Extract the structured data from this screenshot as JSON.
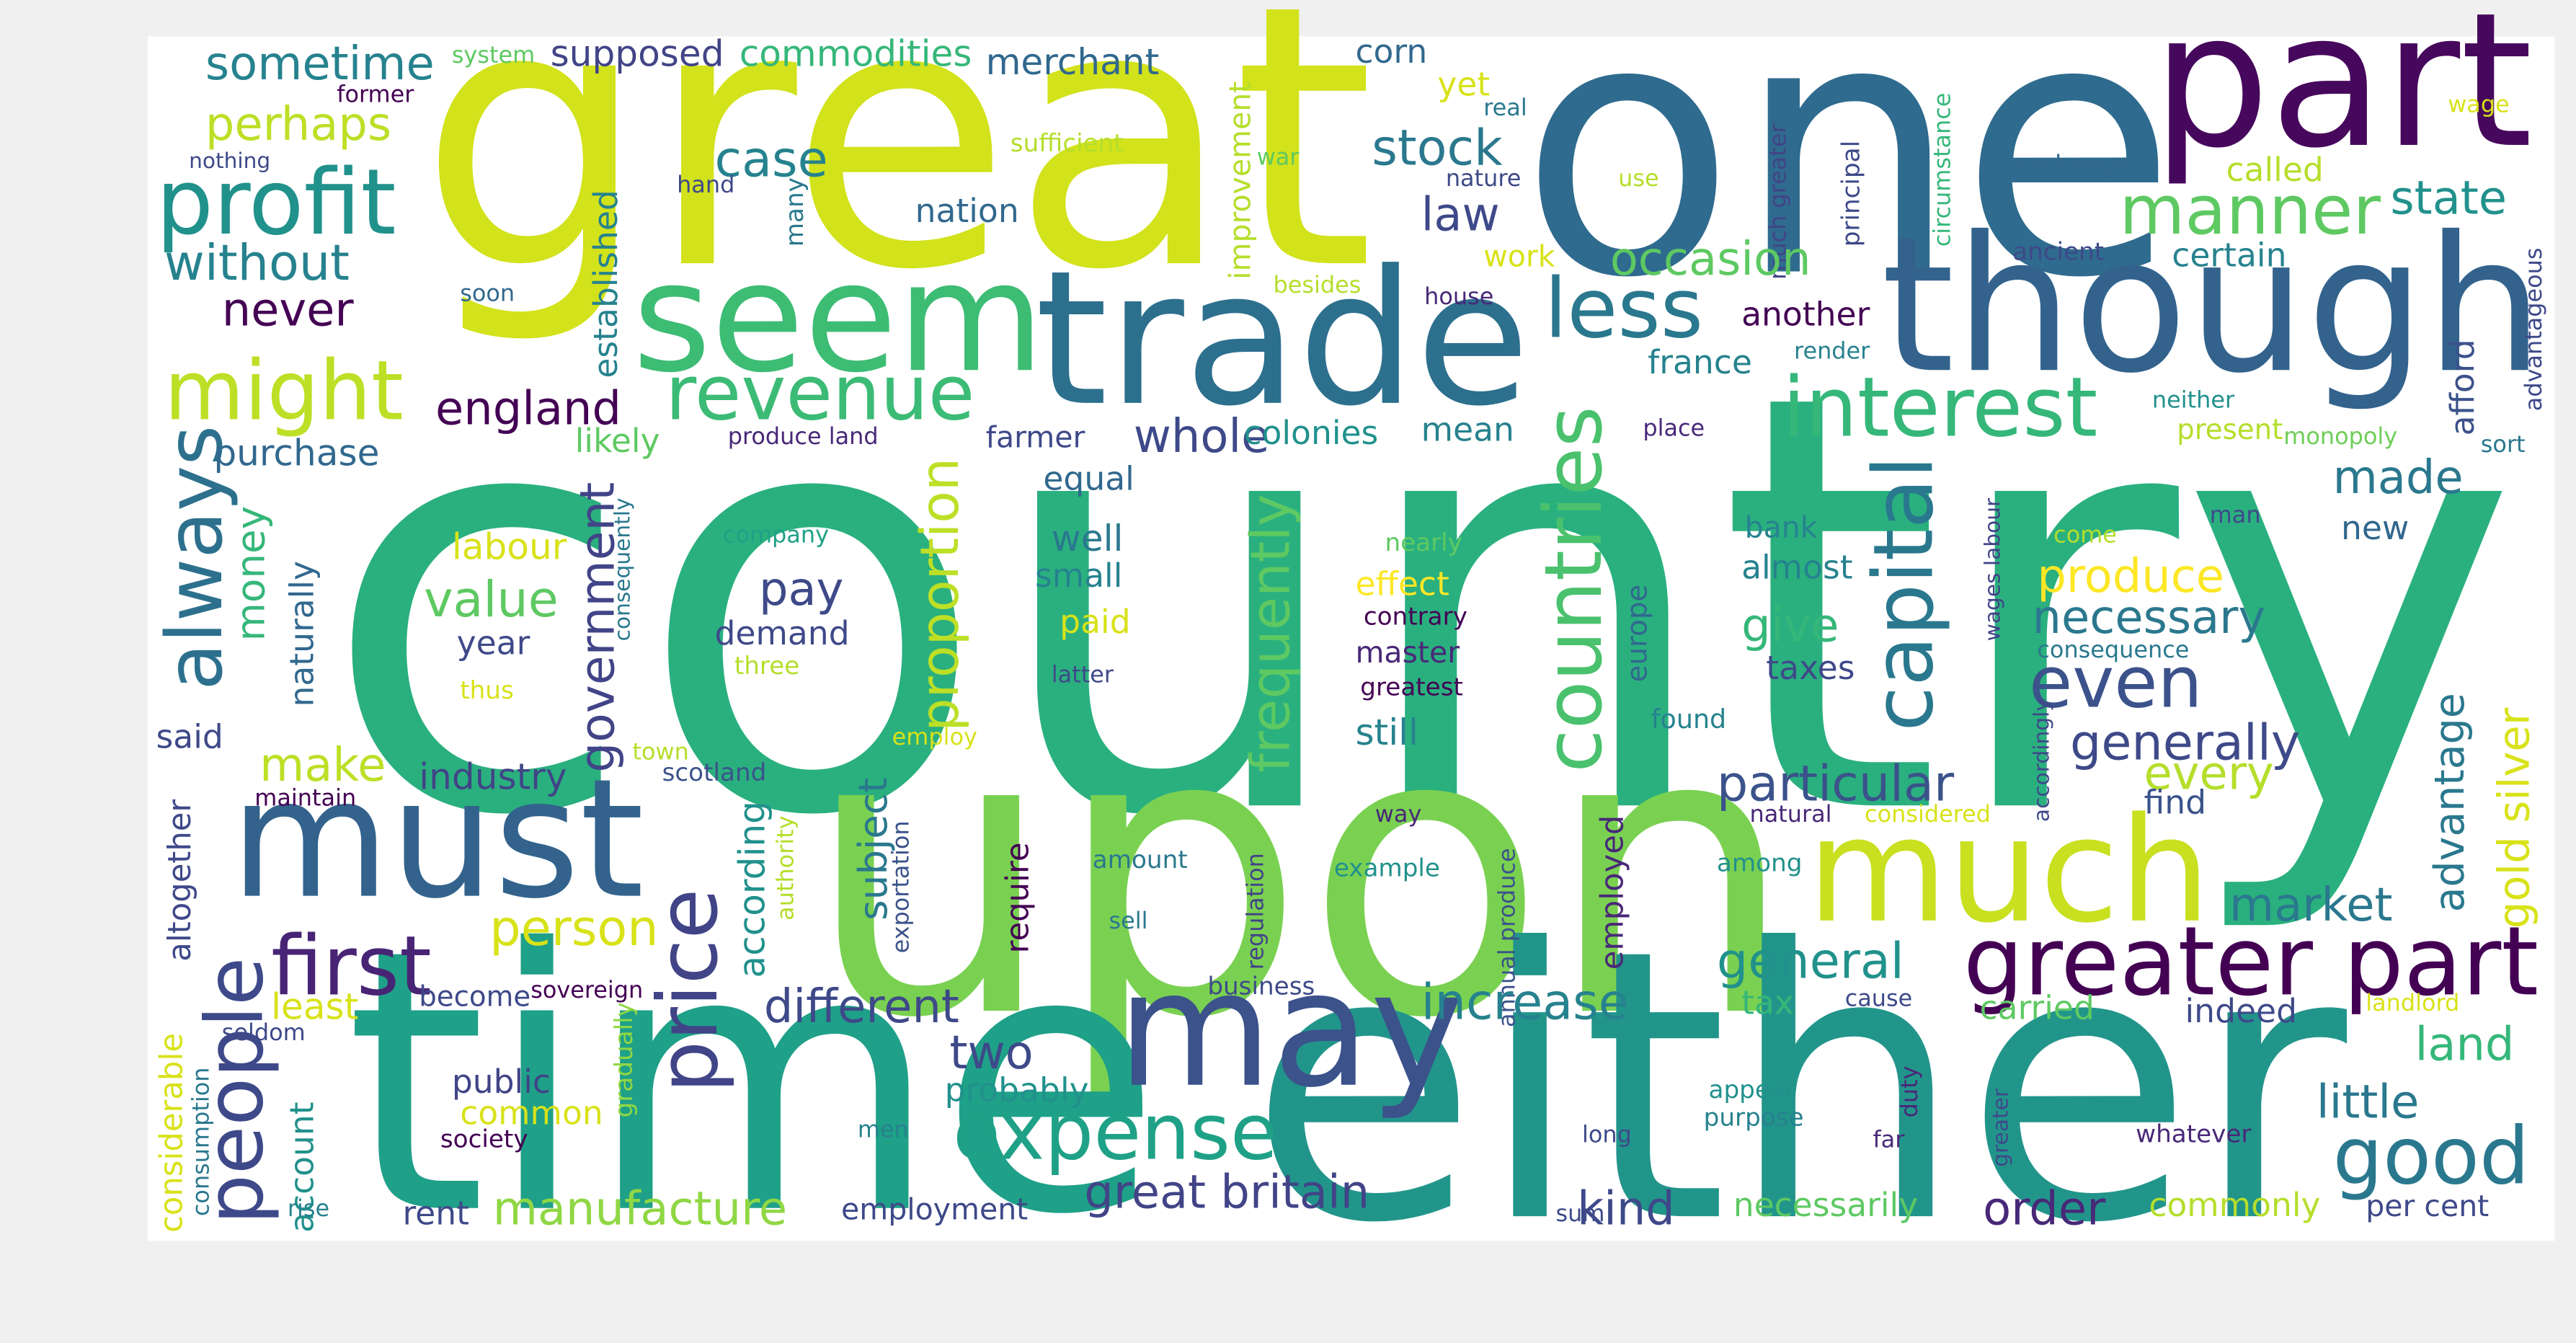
{
  "words": [
    "country",
    "great",
    "one",
    "upon",
    "time",
    "either",
    "part",
    "though",
    "seem",
    "trade",
    "must",
    "much",
    "may",
    "greater part",
    "expense",
    "good",
    "might",
    "profit",
    "manner",
    "interest",
    "revenue",
    "less",
    "even",
    "first",
    "always",
    "people",
    "countries",
    "capital",
    "price",
    "proportion",
    "frequently",
    "government",
    "gold silver",
    "advantage",
    "afford",
    "subject",
    "according",
    "money",
    "naturally",
    "established",
    "improvement",
    "altogether",
    "considerable",
    "consumption",
    "account",
    "gradually",
    "authority",
    "exportation",
    "require",
    "regulation",
    "employed",
    "annual produce",
    "many",
    "principal",
    "much greater",
    "circumstance",
    "advantageous",
    "consequently",
    "wages labour",
    "greater",
    "europe",
    "accordingly",
    "duty",
    "sometime",
    "supposed",
    "commodities",
    "merchant",
    "corn",
    "system",
    "former",
    "perhaps",
    "nothing",
    "case",
    "sufficient",
    "hand",
    "stock",
    "yet",
    "real",
    "nature",
    "war",
    "use",
    "nation",
    "law",
    "work",
    "without",
    "never",
    "soon",
    "besides",
    "house",
    "occasion",
    "another",
    "france",
    "render",
    "wage",
    "exchange",
    "called",
    "state",
    "ancient",
    "certain",
    "neither",
    "present",
    "monopoly",
    "sort",
    "england",
    "purchase",
    "likely",
    "produce land",
    "farmer",
    "whole",
    "colonies",
    "mean",
    "place",
    "equal",
    "labour",
    "company",
    "well",
    "nearly",
    "bank",
    "man",
    "come",
    "made",
    "new",
    "small",
    "almost",
    "produce",
    "effect",
    "value",
    "pay",
    "contrary",
    "paid",
    "necessary",
    "consequence",
    "demand",
    "year",
    "give",
    "master",
    "three",
    "latter",
    "taxes",
    "thus",
    "greatest",
    "said",
    "found",
    "still",
    "generally",
    "town",
    "employ",
    "make",
    "industry",
    "scotland",
    "particular",
    "every",
    "maintain",
    "natural",
    "considered",
    "find",
    "way",
    "person",
    "amount",
    "example",
    "among",
    "market",
    "sell",
    "general",
    "sovereign",
    "different",
    "increase",
    "become",
    "business",
    "least",
    "tax",
    "cause",
    "carried",
    "indeed",
    "landlord",
    "seldom",
    "two",
    "land",
    "public",
    "probably",
    "appear",
    "little",
    "common",
    "purpose",
    "society",
    "men",
    "long",
    "whatever",
    "far",
    "great britain",
    "manufacture",
    "employment",
    "kind",
    "necessarily",
    "order",
    "commonly",
    "per cent",
    "rent",
    "rise",
    "sum"
  ]
}
